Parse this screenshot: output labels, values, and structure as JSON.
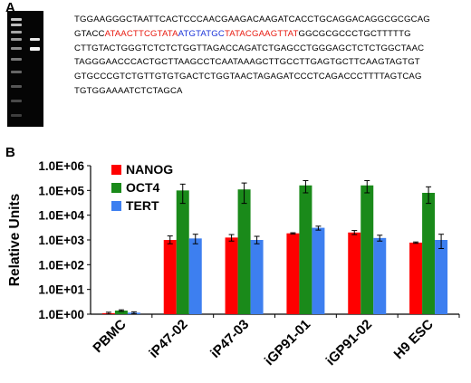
{
  "figure": {
    "panel_a_label": "A",
    "panel_b_label": "B",
    "sequence_lines": [
      [
        {
          "t": "TGGAAGGGCTAATTCACTCCCAACGAAGACAAGATCACCTGCAGGACAGGCGCGCAG",
          "c": "black"
        }
      ],
      [
        {
          "t": "GTACC",
          "c": "black"
        },
        {
          "t": "ATAACTTCGTATA",
          "c": "red"
        },
        {
          "t": "ATGTATGC",
          "c": "blue"
        },
        {
          "t": "TATACGAAGTTAT",
          "c": "red"
        },
        {
          "t": "GGCGCGCCCTGCTTTTTG",
          "c": "black"
        }
      ],
      [
        {
          "t": "CTTGTACTGGGTCTCTCTGGTTAGACCAGATCTGAGCCTGGGAGCTCTCTGGCTAAC",
          "c": "black"
        }
      ],
      [
        {
          "t": "TAGGGAACCCACTGCTTAAGCCTCAATAAAGCTTGCCTTGAGTGCTTCAAGTAGTGT",
          "c": "black"
        }
      ],
      [
        {
          "t": "GTGCCCGTCTGTTGTGTGACTCTGGTAACTAGAGATCCCTCAGACCCTTTTAGTCAG",
          "c": "black"
        }
      ],
      [
        {
          "t": "TGTGGAAAATCTCTAGCA",
          "c": "black"
        }
      ]
    ]
  },
  "colors": {
    "NANOG": "#ff0000",
    "OCT4": "#1a8a1a",
    "TERT": "#3d7ff0"
  },
  "chart_data": {
    "type": "bar",
    "scale": "log",
    "ylabel": "Relative Units",
    "ylim": [
      1,
      1000000
    ],
    "yticks": [
      "1.0E+00",
      "1.0E+01",
      "1.0E+02",
      "1.0E+03",
      "1.0E+04",
      "1.0E+05",
      "1.0E+06"
    ],
    "categories": [
      "PBMC",
      "iP47-02",
      "iP47-03",
      "iGP91-01",
      "iGP91-02",
      "H9 ESC"
    ],
    "legend_position": "top-left",
    "series": [
      {
        "name": "NANOG",
        "values": [
          1.1,
          1000,
          1250,
          1850,
          2000,
          780
        ],
        "err_low": [
          1.0,
          700,
          900,
          1750,
          1650,
          730
        ],
        "err_high": [
          1.2,
          1450,
          1650,
          1950,
          2400,
          830
        ]
      },
      {
        "name": "OCT4",
        "values": [
          1.4,
          100000,
          110000,
          160000,
          160000,
          80000
        ],
        "err_low": [
          1.3,
          30000,
          30000,
          80000,
          80000,
          30000
        ],
        "err_high": [
          1.5,
          180000,
          200000,
          250000,
          250000,
          140000
        ]
      },
      {
        "name": "TERT",
        "values": [
          1.15,
          1150,
          1000,
          3100,
          1200,
          1000
        ],
        "err_low": [
          1.05,
          700,
          700,
          2500,
          900,
          450
        ],
        "err_high": [
          1.25,
          1700,
          1400,
          3600,
          1550,
          1700
        ]
      }
    ]
  }
}
